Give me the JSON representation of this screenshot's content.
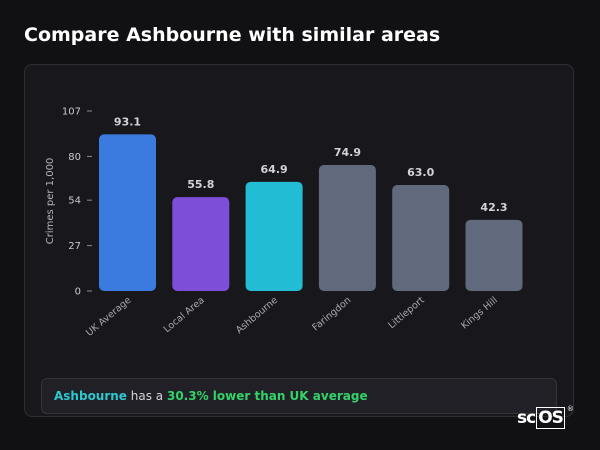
{
  "page": {
    "title": "Compare Ashbourne with similar areas"
  },
  "chart_data": {
    "type": "bar",
    "categories": [
      "UK Average",
      "Local Area",
      "Ashbourne",
      "Faringdon",
      "Littleport",
      "Kings Hill"
    ],
    "values": [
      93.1,
      55.8,
      64.9,
      74.9,
      63.0,
      42.3
    ],
    "value_labels": [
      "93.1",
      "55.8",
      "64.9",
      "74.9",
      "63.0",
      "42.3"
    ],
    "colors": [
      "#3b7be0",
      "#7d4fd8",
      "#22bcd4",
      "#606a7c",
      "#606a7c",
      "#606a7c"
    ],
    "ylabel": "Crimes per 1,000",
    "xlabel": "",
    "yticks": [
      0,
      27,
      54,
      80,
      107
    ],
    "ylim": [
      0,
      107
    ],
    "grid": false
  },
  "summary": {
    "area": "Ashbourne",
    "mid": " has a ",
    "comparison": "30.3% lower than UK average"
  },
  "brand": {
    "prefix": "sc",
    "os": "OS",
    "reg": "®"
  }
}
